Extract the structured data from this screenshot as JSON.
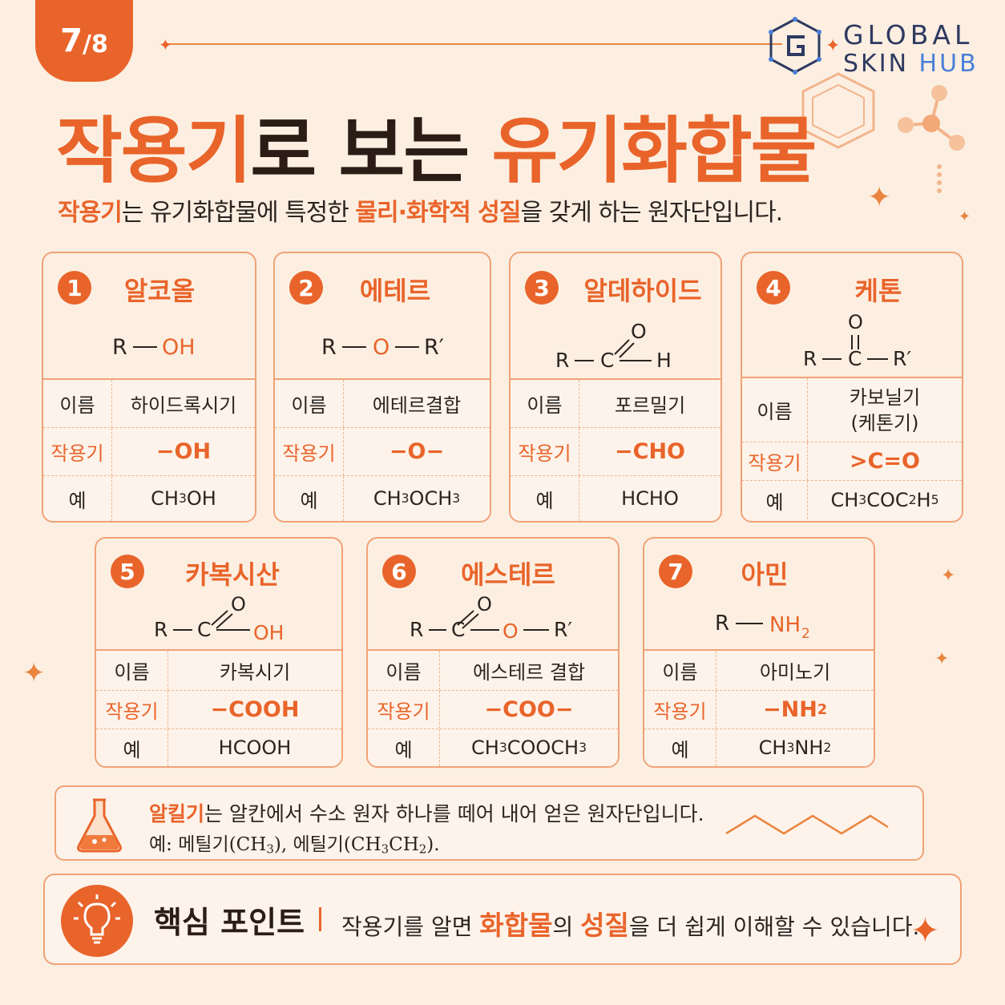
{
  "page": {
    "current": "7",
    "total": "/8"
  },
  "logo": {
    "line1": "GLOBAL",
    "line2a": "SKIN ",
    "line2b": "HUB"
  },
  "title": {
    "part1": "작용기",
    "part2": "로 보는 ",
    "part3": "유기화합물"
  },
  "subtitle": {
    "a": "작용기",
    "b": "는 유기화합물에 특정한 ",
    "c": "물리·화학적 성질",
    "d": "을 갖게 하는 원자단입니다."
  },
  "labels": {
    "name": "이름",
    "group": "작용기",
    "example": "예"
  },
  "cards": [
    {
      "num": "1",
      "title": "알코올",
      "name": "하이드록시기",
      "group": "−OH",
      "example": "CH3OH"
    },
    {
      "num": "2",
      "title": "에테르",
      "name": "에테르결합",
      "group": "−O−",
      "example": "CH3OCH3"
    },
    {
      "num": "3",
      "title": "알데하이드",
      "name": "포르밀기",
      "group": "−CHO",
      "example": "HCHO"
    },
    {
      "num": "4",
      "title": "케톤",
      "name": "카보닐기\n(케톤기)",
      "name1": "카보닐기",
      "name2": "(케톤기)",
      "group": ">C=O",
      "example": "CH3COC2H5"
    },
    {
      "num": "5",
      "title": "카복시산",
      "name": "카복시기",
      "group": "−COOH",
      "example": "HCOOH"
    },
    {
      "num": "6",
      "title": "에스테르",
      "name": "에스테르 결합",
      "group": "−COO−",
      "example": "CH3COOCH3"
    },
    {
      "num": "7",
      "title": "아민",
      "name": "아미노기",
      "group": "−NH2",
      "example": "CH3NH2"
    }
  ],
  "structures": {
    "R": "R",
    "O": "O",
    "OH": "OH",
    "H": "H",
    "C": "C",
    "Rp": "R′",
    "NH": "NH",
    "two": "2"
  },
  "alkyl": {
    "a": "알킬기",
    "b": "는 알칸에서 수소 원자 하나를 떼어 내어 얻은 원자단입니다.",
    "line2": "예: 메틸기(CH3), 에틸기(CH3CH2)."
  },
  "key": {
    "label": "핵심 포인트",
    "a": "작용기를 알면 ",
    "b": "화합물",
    "c": "의 ",
    "d": "성질",
    "e": "을 더 쉽게 이해할 수 있습니다."
  },
  "icons": [
    "star-icon",
    "flask-icon",
    "lightbulb-icon",
    "benzene-icon",
    "molecule-icon"
  ],
  "colors": {
    "accent": "#e9642a",
    "background": "#fcefe2",
    "border": "#f0a276"
  }
}
